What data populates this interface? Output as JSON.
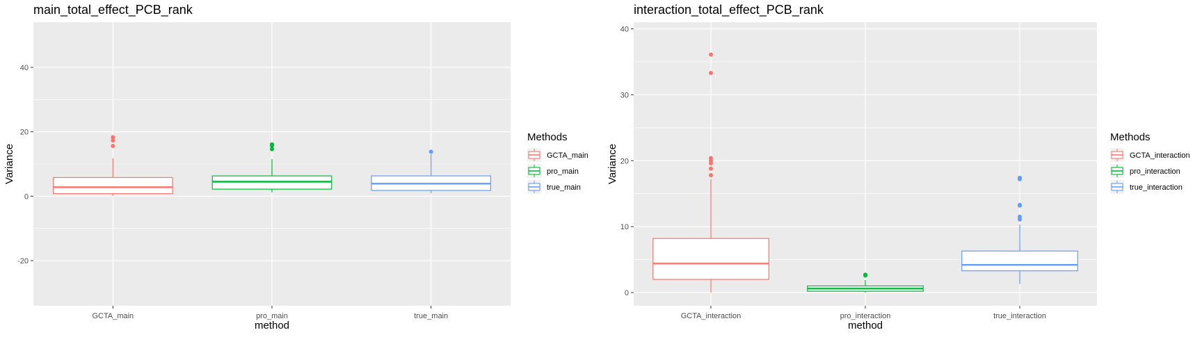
{
  "chart_data": [
    {
      "type": "box",
      "title": "main_total_effect_PCB_rank",
      "xlabel": "method",
      "ylabel": "Variance",
      "ylim": [
        -34,
        54
      ],
      "yticks": [
        -20,
        0,
        20,
        40
      ],
      "grid": true,
      "legend": {
        "title": "Methods",
        "position": "right"
      },
      "categories": [
        "GCTA_main",
        "pro_main",
        "true_main"
      ],
      "series": [
        {
          "name": "GCTA_main",
          "color": "#F8766D",
          "whisker_low": 0.1,
          "q1": 0.8,
          "median": 2.8,
          "q3": 5.8,
          "whisker_high": 11.8,
          "outliers": [
            15.6,
            17.3,
            18.3
          ]
        },
        {
          "name": "pro_main",
          "color": "#00BA38",
          "whisker_low": 1.2,
          "q1": 2.2,
          "median": 4.5,
          "q3": 6.3,
          "whisker_high": 11.5,
          "outliers": [
            14.6,
            15.6,
            16.1
          ]
        },
        {
          "name": "true_main",
          "color": "#619CFF",
          "whisker_low": 0.9,
          "q1": 1.8,
          "median": 3.9,
          "q3": 6.3,
          "whisker_high": 13.0,
          "outliers": [
            13.8
          ]
        }
      ]
    },
    {
      "type": "box",
      "title": "interaction_total_effect_PCB_rank",
      "xlabel": "method",
      "ylabel": "Variance",
      "ylim": [
        -2,
        41
      ],
      "yticks": [
        0,
        10,
        20,
        30,
        40
      ],
      "grid": true,
      "legend": {
        "title": "Methods",
        "position": "right"
      },
      "categories": [
        "GCTA_interaction",
        "pro_interaction",
        "true_interaction"
      ],
      "series": [
        {
          "name": "GCTA_interaction",
          "color": "#F8766D",
          "whisker_low": 0.0,
          "q1": 2.0,
          "median": 4.4,
          "q3": 8.2,
          "whisker_high": 17.2,
          "outliers": [
            17.8,
            18.8,
            19.6,
            20.0,
            20.4,
            33.3,
            36.1
          ]
        },
        {
          "name": "pro_interaction",
          "color": "#00BA38",
          "whisker_low": 0.0,
          "q1": 0.2,
          "median": 0.6,
          "q3": 1.0,
          "whisker_high": 1.9,
          "outliers": [
            2.6,
            2.7
          ]
        },
        {
          "name": "true_interaction",
          "color": "#619CFF",
          "whisker_low": 1.3,
          "q1": 3.3,
          "median": 4.2,
          "q3": 6.3,
          "whisker_high": 10.3,
          "outliers": [
            11.1,
            11.5,
            13.2,
            13.3,
            17.2,
            17.4
          ]
        }
      ]
    }
  ]
}
